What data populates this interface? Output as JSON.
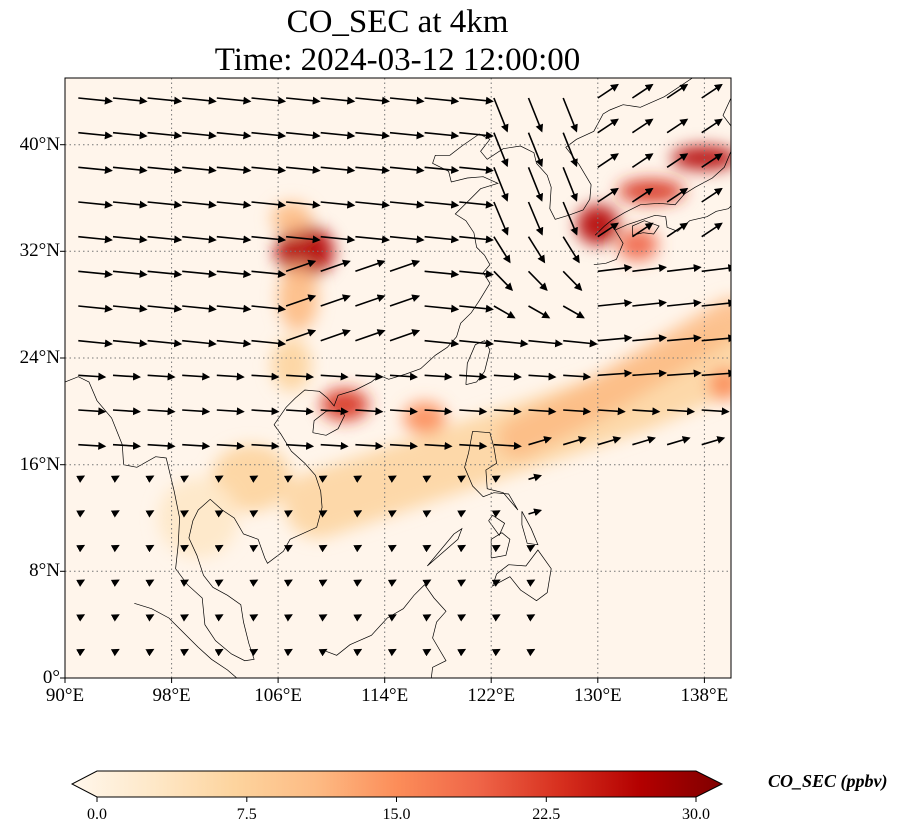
{
  "title": {
    "line1": "CO_SEC at 4km",
    "line2": "Time: 2024-03-12 12:00:00"
  },
  "map": {
    "lon_range": [
      90,
      140
    ],
    "lat_range": [
      0,
      45
    ],
    "lat_ticks": [
      {
        "value": 40,
        "label": "40°N"
      },
      {
        "value": 32,
        "label": "32°N"
      },
      {
        "value": 24,
        "label": "24°N"
      },
      {
        "value": 16,
        "label": "16°N"
      },
      {
        "value": 8,
        "label": "8°N"
      },
      {
        "value": 0,
        "label": "0°"
      }
    ],
    "lon_ticks": [
      {
        "value": 90,
        "label": "90°E"
      },
      {
        "value": 98,
        "label": "98°E"
      },
      {
        "value": 106,
        "label": "106°E"
      },
      {
        "value": 114,
        "label": "114°E"
      },
      {
        "value": 122,
        "label": "122°E"
      },
      {
        "value": 130,
        "label": "130°E"
      },
      {
        "value": 138,
        "label": "138°E"
      }
    ],
    "gridlines": true,
    "background_color": "#fff5eb",
    "plumes": [
      {
        "lon": 108,
        "lat": 32.0,
        "rlon": 2.2,
        "rlat": 2.0,
        "value": 26
      },
      {
        "lon": 107,
        "lat": 34.5,
        "rlon": 1.5,
        "rlat": 1.2,
        "value": 12
      },
      {
        "lon": 107.5,
        "lat": 28.5,
        "rlon": 1.5,
        "rlat": 2.5,
        "value": 11
      },
      {
        "lon": 111,
        "lat": 20.5,
        "rlon": 1.8,
        "rlat": 1.2,
        "value": 22
      },
      {
        "lon": 117,
        "lat": 19.5,
        "rlon": 1.6,
        "rlat": 1.2,
        "value": 14
      },
      {
        "lon": 107,
        "lat": 23.5,
        "rlon": 1.5,
        "rlat": 2.0,
        "value": 6
      },
      {
        "lon": 104,
        "lat": 15.0,
        "rlon": 3.0,
        "rlat": 2.5,
        "value": 6
      },
      {
        "lon": 100,
        "lat": 12.0,
        "rlon": 3.0,
        "rlat": 3.0,
        "value": 5
      },
      {
        "lon": 130,
        "lat": 34.0,
        "rlon": 1.6,
        "rlat": 1.5,
        "value": 26
      },
      {
        "lon": 133,
        "lat": 32.5,
        "rlon": 1.5,
        "rlat": 1.2,
        "value": 18
      },
      {
        "lon": 134,
        "lat": 36.5,
        "rlon": 2.5,
        "rlat": 0.9,
        "value": 24
      },
      {
        "lon": 138,
        "lat": 39.0,
        "rlon": 2.5,
        "rlat": 0.9,
        "value": 28
      },
      {
        "lon": 139.5,
        "lat": 22.0,
        "rlon": 1.2,
        "rlat": 1.2,
        "value": 14
      }
    ],
    "bands": [
      {
        "points": [
          [
            109,
            13
          ],
          [
            115,
            15
          ],
          [
            121,
            17
          ],
          [
            127,
            19
          ],
          [
            133,
            21
          ],
          [
            140,
            24
          ]
        ],
        "width": 5,
        "value": 7
      },
      {
        "points": [
          [
            124,
            18
          ],
          [
            130,
            21
          ],
          [
            135,
            24
          ],
          [
            140,
            27
          ]
        ],
        "width": 3,
        "value": 11
      }
    ],
    "coastline_color": "#000000"
  },
  "colorbar": {
    "label": "CO_SEC (ppbv)",
    "ticks": [
      "0.0",
      "7.5",
      "15.0",
      "22.5",
      "30.0"
    ],
    "min": 0,
    "max": 30,
    "extend": "both",
    "colormap": "OrRd",
    "colors": [
      "#fff7ec",
      "#fee8c8",
      "#fdd49e",
      "#fdbb84",
      "#fc8d59",
      "#ef6548",
      "#d7301f",
      "#b30000",
      "#7f0000"
    ]
  }
}
